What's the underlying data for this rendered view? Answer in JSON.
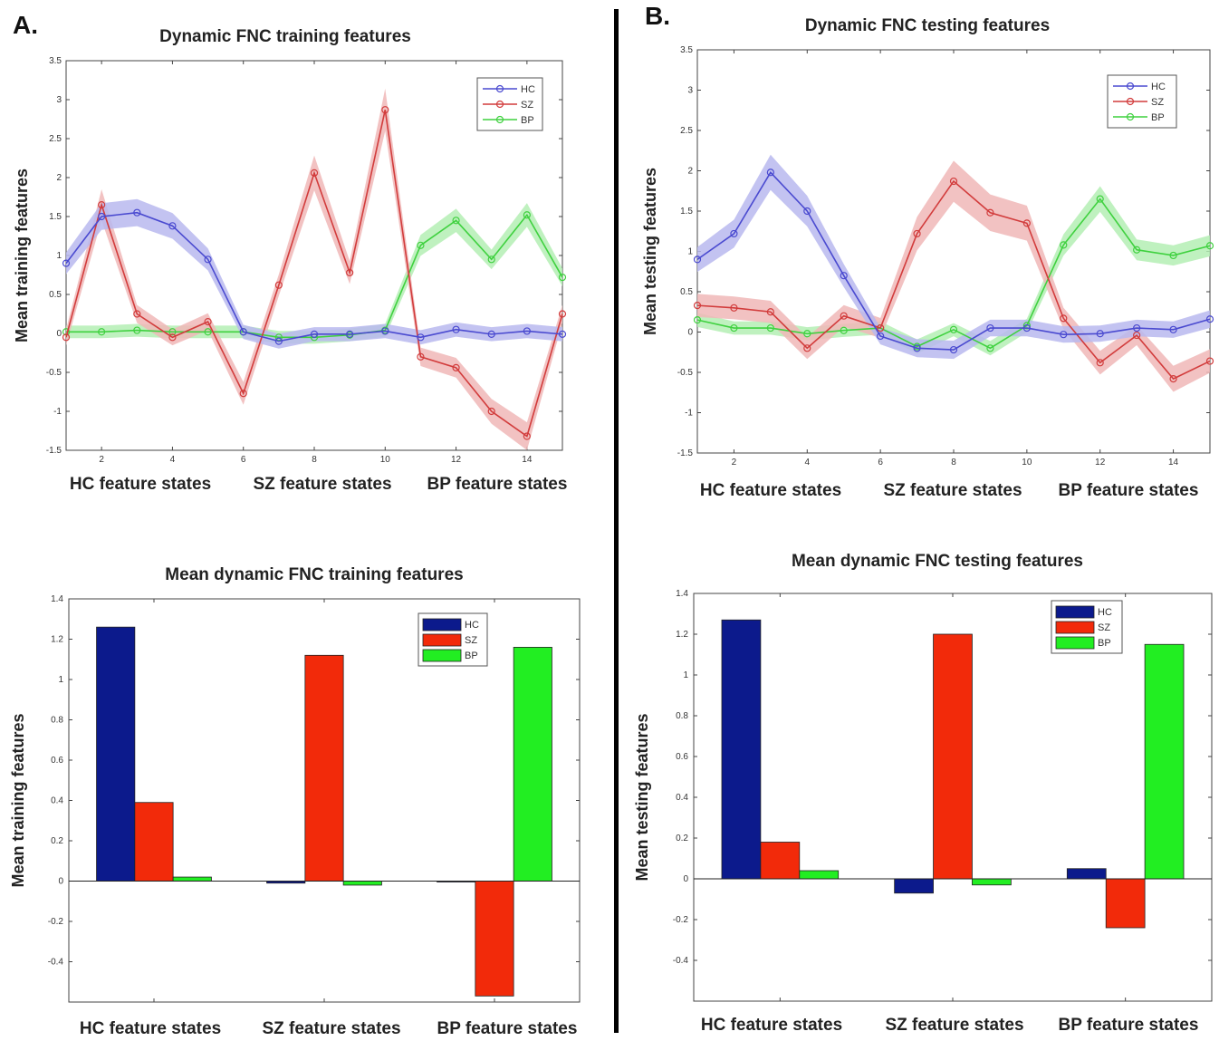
{
  "panels": {
    "a_label": "A.",
    "b_label": "B."
  },
  "chart_data": [
    {
      "id": "a_line",
      "type": "line",
      "title": "Dynamic FNC training features",
      "ylabel": "Mean training features",
      "group_labels": [
        "HC feature states",
        "SZ feature states",
        "BP feature states"
      ],
      "x": [
        1,
        2,
        3,
        4,
        5,
        6,
        7,
        8,
        9,
        10,
        11,
        12,
        13,
        14,
        15
      ],
      "xlim": [
        1,
        15
      ],
      "ylim": [
        -1.5,
        3.5
      ],
      "xticks": [
        2,
        4,
        6,
        8,
        10,
        12,
        14
      ],
      "xtick_labels": [
        "2",
        "4",
        "6",
        "8",
        "10",
        "12",
        "14"
      ],
      "yticks": [
        -1.5,
        -1,
        -0.5,
        0,
        0.5,
        1,
        1.5,
        2,
        2.5,
        3,
        3.5
      ],
      "ytick_labels": [
        "-1.5",
        "-1",
        "-0.5",
        "0",
        "0.5",
        "1",
        "1.5",
        "2",
        "2.5",
        "3",
        "3.5"
      ],
      "legend_position": "top-right",
      "series": [
        {
          "name": "HC",
          "color": "#4a4ad0",
          "band": "#b9b9ef",
          "err": 0.09,
          "values": [
            0.9,
            1.5,
            1.55,
            1.38,
            0.95,
            0.02,
            -0.1,
            -0.01,
            -0.01,
            0.03,
            -0.05,
            0.05,
            -0.01,
            0.03,
            -0.01
          ]
        },
        {
          "name": "SZ",
          "color": "#d23c3c",
          "band": "#f0b7b7",
          "err": 0.1,
          "values": [
            -0.05,
            1.65,
            0.25,
            -0.05,
            0.15,
            -0.77,
            0.62,
            2.06,
            0.78,
            2.87,
            -0.3,
            -0.44,
            -1.0,
            -1.32,
            0.25
          ]
        },
        {
          "name": "BP",
          "color": "#3fd13f",
          "band": "#b4efb4",
          "err": 0.08,
          "values": [
            0.02,
            0.02,
            0.04,
            0.02,
            0.02,
            0.02,
            -0.05,
            -0.05,
            -0.02,
            0.04,
            1.13,
            1.45,
            0.95,
            1.52,
            0.72
          ]
        }
      ]
    },
    {
      "id": "b_line",
      "type": "line",
      "title": "Dynamic FNC testing features",
      "ylabel": "Mean testing features",
      "group_labels": [
        "HC feature states",
        "SZ feature states",
        "BP feature states"
      ],
      "x": [
        1,
        2,
        3,
        4,
        5,
        6,
        7,
        8,
        9,
        10,
        11,
        12,
        13,
        14,
        15
      ],
      "xlim": [
        1,
        15
      ],
      "ylim": [
        -1.5,
        3.5
      ],
      "xticks": [
        2,
        4,
        6,
        8,
        10,
        12,
        14
      ],
      "xtick_labels": [
        "2",
        "4",
        "6",
        "8",
        "10",
        "12",
        "14"
      ],
      "yticks": [
        -1.5,
        -1,
        -0.5,
        0,
        0.5,
        1,
        1.5,
        2,
        2.5,
        3,
        3.5
      ],
      "ytick_labels": [
        "-1.5",
        "-1",
        "-0.5",
        "0",
        "0.5",
        "1",
        "1.5",
        "2",
        "2.5",
        "3",
        "3.5"
      ],
      "legend_position": "top-right",
      "series": [
        {
          "name": "HC",
          "color": "#4a4ad0",
          "band": "#b9b9ef",
          "err": 0.1,
          "values": [
            0.9,
            1.22,
            1.98,
            1.5,
            0.7,
            -0.05,
            -0.2,
            -0.22,
            0.05,
            0.05,
            -0.03,
            -0.02,
            0.05,
            0.03,
            0.16
          ]
        },
        {
          "name": "SZ",
          "color": "#d23c3c",
          "band": "#f0b7b7",
          "err": 0.12,
          "values": [
            0.33,
            0.3,
            0.25,
            -0.2,
            0.2,
            0.05,
            1.22,
            1.87,
            1.48,
            1.35,
            0.17,
            -0.38,
            -0.04,
            -0.58,
            -0.36
          ]
        },
        {
          "name": "BP",
          "color": "#3fd13f",
          "band": "#b4efb4",
          "err": 0.08,
          "values": [
            0.15,
            0.05,
            0.05,
            -0.02,
            0.02,
            0.05,
            -0.18,
            0.03,
            -0.2,
            0.08,
            1.08,
            1.65,
            1.02,
            0.95,
            1.07
          ]
        }
      ]
    },
    {
      "id": "a_bar",
      "type": "bar",
      "title": "Mean dynamic FNC training features",
      "ylabel": "Mean training features",
      "categories": [
        "HC feature states",
        "SZ feature states",
        "BP feature states"
      ],
      "ylim": [
        -0.6,
        1.4
      ],
      "yticks": [
        -0.4,
        -0.2,
        0,
        0.2,
        0.4,
        0.6,
        0.8,
        1,
        1.2,
        1.4
      ],
      "ytick_labels": [
        "-0.4",
        "-0.2",
        "0",
        "0.2",
        "0.4",
        "0.6",
        "0.8",
        "1",
        "1.2",
        "1.4"
      ],
      "legend_position": "top-right",
      "series": [
        {
          "name": "HC",
          "color": "#0c1a8c",
          "values": [
            1.26,
            -0.01,
            0.0
          ]
        },
        {
          "name": "SZ",
          "color": "#f22a0a",
          "values": [
            0.39,
            1.12,
            -0.57
          ]
        },
        {
          "name": "BP",
          "color": "#22ee22",
          "values": [
            0.02,
            -0.02,
            1.16
          ]
        }
      ]
    },
    {
      "id": "b_bar",
      "type": "bar",
      "title": "Mean dynamic FNC testing features",
      "ylabel": "Mean testing features",
      "categories": [
        "HC feature states",
        "SZ feature states",
        "BP feature states"
      ],
      "ylim": [
        -0.6,
        1.4
      ],
      "yticks": [
        -0.4,
        -0.2,
        0,
        0.2,
        0.4,
        0.6,
        0.8,
        1,
        1.2,
        1.4
      ],
      "ytick_labels": [
        "-0.4",
        "-0.2",
        "0",
        "0.2",
        "0.4",
        "0.6",
        "0.8",
        "1",
        "1.2",
        "1.4"
      ],
      "legend_position": "top-right",
      "series": [
        {
          "name": "HC",
          "color": "#0c1a8c",
          "values": [
            1.27,
            -0.07,
            0.05
          ]
        },
        {
          "name": "SZ",
          "color": "#f22a0a",
          "values": [
            0.18,
            1.2,
            -0.24
          ]
        },
        {
          "name": "BP",
          "color": "#22ee22",
          "values": [
            0.04,
            -0.03,
            1.15
          ]
        }
      ]
    }
  ]
}
